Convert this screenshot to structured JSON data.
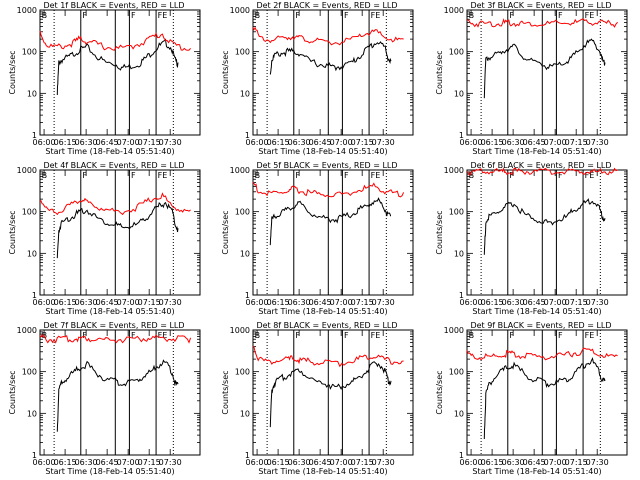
{
  "figure": {
    "colors": {
      "events": "#000000",
      "lld": "#ff0000",
      "axes": "#000000",
      "background": "#ffffff"
    },
    "xlabel": "Start Time (18-Feb-14 05:51:40)",
    "ylabel": "Counts/sec",
    "x_tick_labels": [
      "06:00",
      "06:15",
      "06:30",
      "06:45",
      "07:00",
      "07:15",
      "07:30"
    ],
    "y_tick_labels": [
      "1",
      "10",
      "100",
      "1000"
    ],
    "interval_markers": [
      "B",
      "F",
      "F",
      "FE"
    ]
  },
  "chart_data": [
    {
      "type": "line",
      "title": "Det 1f BLACK = Events, RED = LLD",
      "xlim_minutes_after_start": [
        0,
        102
      ],
      "ylim": [
        1,
        1000
      ],
      "yscale": "log",
      "series": [
        {
          "name": "Events",
          "color": "#000000",
          "x": [
            11,
            12,
            14,
            18,
            22,
            26,
            30,
            36,
            42,
            48,
            52,
            57,
            63,
            67,
            72,
            76,
            80,
            84,
            86,
            88
          ],
          "y": [
            10,
            60,
            70,
            80,
            100,
            125,
            140,
            85,
            60,
            55,
            45,
            48,
            55,
            75,
            110,
            150,
            180,
            130,
            70,
            55
          ]
        },
        {
          "name": "LLD",
          "color": "#ff0000",
          "x": [
            0,
            4,
            10,
            16,
            22,
            26,
            30,
            36,
            42,
            50,
            58,
            66,
            72,
            78,
            84,
            90,
            96
          ],
          "y": [
            330,
            160,
            140,
            150,
            185,
            230,
            190,
            170,
            140,
            130,
            140,
            190,
            250,
            290,
            170,
            140,
            120
          ]
        }
      ]
    },
    {
      "type": "line",
      "title": "Det 2f BLACK = Events, RED = LLD",
      "xlim_minutes_after_start": [
        0,
        102
      ],
      "ylim": [
        1,
        1000
      ],
      "yscale": "log",
      "series": [
        {
          "name": "Events",
          "color": "#000000",
          "x": [
            11,
            12,
            14,
            18,
            22,
            26,
            30,
            36,
            42,
            48,
            52,
            57,
            63,
            67,
            72,
            76,
            80,
            84,
            86,
            88
          ],
          "y": [
            30,
            70,
            90,
            100,
            110,
            110,
            100,
            65,
            55,
            50,
            45,
            50,
            60,
            80,
            120,
            160,
            190,
            140,
            80,
            60
          ]
        },
        {
          "name": "LLD",
          "color": "#ff0000",
          "x": [
            0,
            4,
            10,
            16,
            22,
            26,
            30,
            36,
            42,
            50,
            58,
            66,
            72,
            78,
            84,
            90,
            96
          ],
          "y": [
            500,
            230,
            210,
            220,
            240,
            260,
            230,
            210,
            190,
            180,
            190,
            230,
            300,
            330,
            240,
            210,
            200
          ]
        }
      ]
    },
    {
      "type": "line",
      "title": "Det 3f BLACK = Events, RED = LLD",
      "xlim_minutes_after_start": [
        0,
        102
      ],
      "ylim": [
        1,
        1000
      ],
      "yscale": "log",
      "series": [
        {
          "name": "Events",
          "color": "#000000",
          "x": [
            11,
            12,
            14,
            18,
            22,
            26,
            30,
            36,
            42,
            48,
            52,
            57,
            63,
            67,
            72,
            76,
            80,
            84,
            86,
            88
          ],
          "y": [
            10,
            70,
            80,
            90,
            110,
            130,
            145,
            85,
            60,
            55,
            45,
            50,
            60,
            80,
            120,
            170,
            200,
            130,
            70,
            55
          ]
        },
        {
          "name": "LLD",
          "color": "#ff0000",
          "x": [
            0,
            4,
            10,
            16,
            22,
            26,
            30,
            36,
            42,
            50,
            58,
            66,
            72,
            78,
            84,
            90,
            96
          ],
          "y": [
            600,
            520,
            520,
            520,
            530,
            540,
            530,
            520,
            510,
            510,
            520,
            540,
            560,
            580,
            540,
            520,
            510
          ]
        }
      ]
    },
    {
      "type": "line",
      "title": "Det 4f BLACK = Events, RED = LLD",
      "xlim_minutes_after_start": [
        0,
        102
      ],
      "ylim": [
        1,
        1000
      ],
      "yscale": "log",
      "series": [
        {
          "name": "Events",
          "color": "#000000",
          "x": [
            11,
            12,
            14,
            18,
            22,
            26,
            30,
            36,
            42,
            48,
            52,
            57,
            63,
            67,
            72,
            76,
            80,
            84,
            86,
            88
          ],
          "y": [
            8,
            40,
            60,
            75,
            90,
            110,
            120,
            80,
            60,
            55,
            45,
            48,
            55,
            75,
            110,
            150,
            180,
            120,
            60,
            40
          ]
        },
        {
          "name": "LLD",
          "color": "#ff0000",
          "x": [
            0,
            4,
            10,
            16,
            22,
            26,
            30,
            36,
            42,
            50,
            58,
            66,
            72,
            78,
            84,
            90,
            96
          ],
          "y": [
            230,
            120,
            110,
            130,
            170,
            220,
            180,
            150,
            120,
            110,
            120,
            170,
            230,
            270,
            150,
            120,
            110
          ]
        }
      ]
    },
    {
      "type": "line",
      "title": "Det 5f BLACK = Events, RED = LLD",
      "xlim_minutes_after_start": [
        0,
        102
      ],
      "ylim": [
        1,
        1000
      ],
      "yscale": "log",
      "series": [
        {
          "name": "Events",
          "color": "#000000",
          "x": [
            11,
            12,
            14,
            18,
            22,
            26,
            30,
            36,
            42,
            48,
            52,
            57,
            63,
            67,
            72,
            76,
            80,
            84,
            86,
            88
          ],
          "y": [
            20,
            70,
            90,
            100,
            120,
            150,
            170,
            110,
            80,
            75,
            70,
            80,
            95,
            120,
            150,
            180,
            200,
            130,
            90,
            80
          ]
        },
        {
          "name": "LLD",
          "color": "#ff0000",
          "x": [
            0,
            4,
            10,
            16,
            22,
            26,
            30,
            36,
            42,
            50,
            58,
            66,
            72,
            78,
            84,
            90,
            96
          ],
          "y": [
            550,
            330,
            290,
            310,
            340,
            380,
            340,
            310,
            290,
            280,
            290,
            340,
            400,
            450,
            340,
            300,
            290
          ]
        }
      ]
    },
    {
      "type": "line",
      "title": "Det 6f BLACK = Events, RED = LLD",
      "xlim_minutes_after_start": [
        0,
        102
      ],
      "ylim": [
        1,
        1000
      ],
      "yscale": "log",
      "series": [
        {
          "name": "Events",
          "color": "#000000",
          "x": [
            11,
            12,
            14,
            18,
            22,
            26,
            30,
            36,
            42,
            48,
            52,
            57,
            63,
            67,
            72,
            76,
            80,
            84,
            86,
            88
          ],
          "y": [
            10,
            60,
            80,
            100,
            120,
            150,
            170,
            100,
            70,
            65,
            60,
            65,
            80,
            110,
            150,
            180,
            210,
            140,
            90,
            70
          ]
        },
        {
          "name": "LLD",
          "color": "#ff0000",
          "x": [
            0,
            4,
            10,
            16,
            22,
            26,
            30,
            36,
            42,
            50,
            58,
            66,
            72,
            78,
            84,
            90,
            96
          ],
          "y": [
            1000,
            1000,
            1000,
            1000,
            1000,
            1000,
            1000,
            1000,
            1000,
            1000,
            1000,
            1000,
            1000,
            1000,
            1000,
            1000,
            1000
          ]
        }
      ]
    },
    {
      "type": "line",
      "title": "Det 7f BLACK = Events, RED = LLD",
      "xlim_minutes_after_start": [
        0,
        102
      ],
      "ylim": [
        1,
        1000
      ],
      "yscale": "log",
      "series": [
        {
          "name": "Events",
          "color": "#000000",
          "x": [
            11,
            12,
            14,
            18,
            22,
            26,
            30,
            36,
            42,
            48,
            52,
            57,
            63,
            67,
            72,
            76,
            80,
            84,
            86,
            88
          ],
          "y": [
            4,
            40,
            60,
            80,
            110,
            140,
            160,
            100,
            70,
            65,
            55,
            60,
            70,
            90,
            120,
            160,
            180,
            110,
            60,
            50
          ]
        },
        {
          "name": "LLD",
          "color": "#ff0000",
          "x": [
            0,
            4,
            10,
            16,
            22,
            26,
            30,
            36,
            42,
            50,
            58,
            66,
            72,
            78,
            84,
            90,
            96
          ],
          "y": [
            750,
            650,
            650,
            660,
            680,
            700,
            690,
            670,
            650,
            650,
            660,
            680,
            700,
            720,
            680,
            660,
            650
          ]
        }
      ]
    },
    {
      "type": "line",
      "title": "Det 8f BLACK = Events, RED = LLD",
      "xlim_minutes_after_start": [
        0,
        102
      ],
      "ylim": [
        1,
        1000
      ],
      "yscale": "log",
      "series": [
        {
          "name": "Events",
          "color": "#000000",
          "x": [
            11,
            12,
            14,
            18,
            22,
            26,
            30,
            36,
            42,
            48,
            52,
            57,
            63,
            67,
            72,
            76,
            80,
            84,
            86,
            88
          ],
          "y": [
            5,
            40,
            60,
            75,
            90,
            110,
            120,
            80,
            60,
            55,
            45,
            50,
            60,
            80,
            110,
            150,
            180,
            120,
            70,
            60
          ]
        },
        {
          "name": "LLD",
          "color": "#ff0000",
          "x": [
            0,
            4,
            10,
            16,
            22,
            26,
            30,
            36,
            42,
            50,
            58,
            66,
            72,
            78,
            84,
            90,
            96
          ],
          "y": [
            500,
            210,
            190,
            200,
            210,
            230,
            210,
            190,
            180,
            175,
            180,
            210,
            250,
            280,
            210,
            190,
            180
          ]
        }
      ]
    },
    {
      "type": "line",
      "title": "Det 9f BLACK = Events, RED = LLD",
      "xlim_minutes_after_start": [
        0,
        102
      ],
      "ylim": [
        1,
        1000
      ],
      "yscale": "log",
      "series": [
        {
          "name": "Events",
          "color": "#000000",
          "x": [
            11,
            12,
            14,
            18,
            22,
            26,
            30,
            36,
            42,
            48,
            52,
            57,
            63,
            67,
            72,
            76,
            80,
            84,
            86,
            88
          ],
          "y": [
            3,
            30,
            55,
            80,
            110,
            140,
            160,
            100,
            70,
            65,
            55,
            60,
            70,
            90,
            130,
            170,
            190,
            120,
            70,
            60
          ]
        },
        {
          "name": "LLD",
          "color": "#ff0000",
          "x": [
            0,
            4,
            10,
            16,
            22,
            26,
            30,
            36,
            42,
            50,
            58,
            66,
            72,
            78,
            84,
            90,
            96
          ],
          "y": [
            300,
            250,
            240,
            250,
            270,
            300,
            280,
            260,
            250,
            250,
            260,
            290,
            330,
            360,
            290,
            250,
            240
          ]
        }
      ]
    }
  ]
}
